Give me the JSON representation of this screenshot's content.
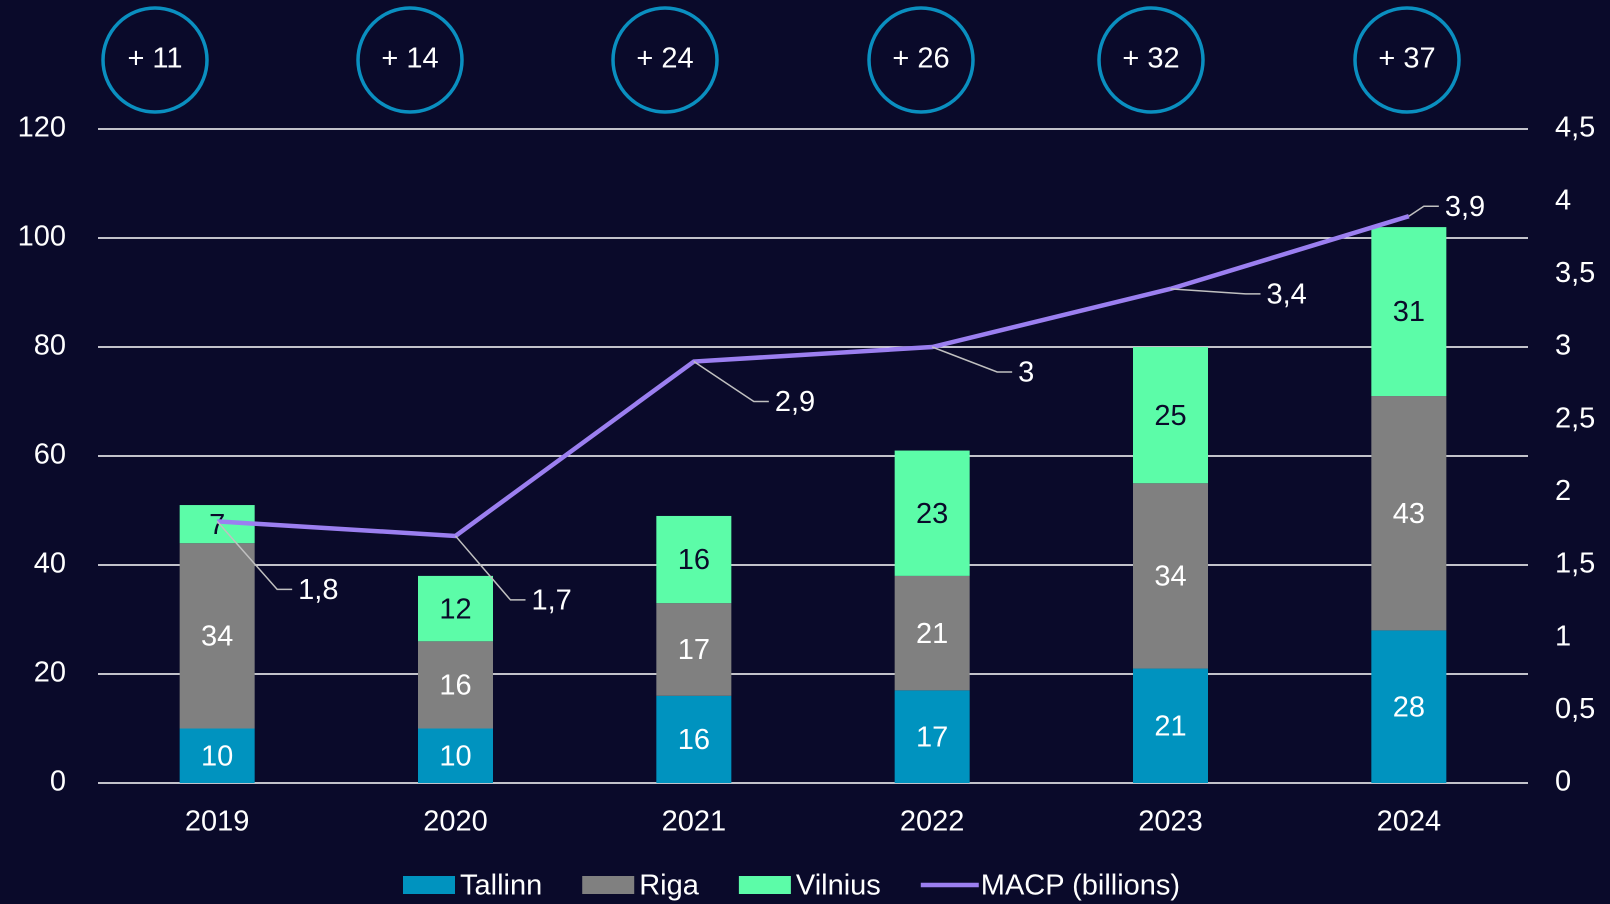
{
  "chart_data": {
    "type": "bar",
    "stacked": true,
    "categories": [
      "2019",
      "2020",
      "2021",
      "2022",
      "2023",
      "2024"
    ],
    "annotations": [
      "+ 11",
      "+ 14",
      "+ 24",
      "+ 26",
      "+ 32",
      "+ 37"
    ],
    "series": [
      {
        "name": "Tallinn",
        "color": "#0093bf",
        "label_color": "#ffffff",
        "values": [
          10,
          10,
          16,
          17,
          21,
          28
        ]
      },
      {
        "name": "Riga",
        "color": "#808080",
        "label_color": "#ffffff",
        "values": [
          34,
          16,
          17,
          21,
          34,
          43
        ]
      },
      {
        "name": "Vilnius",
        "color": "#5cfca8",
        "label_color": "#0a0a2a",
        "values": [
          7,
          12,
          16,
          23,
          25,
          31
        ]
      },
      {
        "name": "MACP (billions)",
        "type": "line",
        "axis": "y2",
        "color": "#9b7ff0",
        "values": [
          1.8,
          1.7,
          2.9,
          3,
          3.4,
          3.9
        ],
        "value_labels": [
          "1,8",
          "1,7",
          "2,9",
          "3",
          "3,4",
          "3,9"
        ]
      }
    ],
    "ylim": [
      0,
      120
    ],
    "yticks": [
      0,
      20,
      40,
      60,
      80,
      100,
      120
    ],
    "y2lim": [
      0,
      4.5
    ],
    "y2ticks": [
      0,
      {
        "value": 0.5,
        "label": "0,5"
      },
      1,
      {
        "value": 1.5,
        "label": "1,5"
      },
      2,
      {
        "value": 2.5,
        "label": "2,5"
      },
      3,
      {
        "value": 3.5,
        "label": "3,5"
      },
      4,
      {
        "value": 4.5,
        "label": "4,5"
      }
    ],
    "grid": true,
    "legend": "bottom"
  }
}
